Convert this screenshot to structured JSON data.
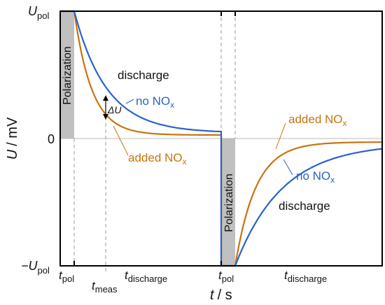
{
  "chart_data": {
    "type": "line",
    "x_axis": {
      "label_main": "t",
      "label_unit": "/ s",
      "ticks": [
        {
          "main": "t",
          "sub": "pol"
        },
        {
          "main": "t",
          "sub": "meas"
        },
        {
          "main": "t",
          "sub": "discharge"
        },
        {
          "main": "t",
          "sub": "pol"
        },
        {
          "main": "t",
          "sub": "discharge"
        }
      ]
    },
    "y_axis": {
      "label_main": "U",
      "label_unit": "/ mV",
      "ticks": [
        {
          "main": "U",
          "sub": "pol"
        },
        {
          "main": "0",
          "sub": ""
        },
        {
          "main": "−U",
          "sub": "pol"
        }
      ]
    },
    "phases": [
      {
        "label": "Polarization"
      },
      {
        "label": "discharge"
      },
      {
        "label": "Polarization"
      },
      {
        "label": "discharge"
      }
    ],
    "series": [
      {
        "name": "no NO",
        "sub": "x",
        "color": "#2a62c8"
      },
      {
        "name": "added NO",
        "sub": "x",
        "color": "#c8740f"
      }
    ],
    "delta_label": {
      "main": "ΔU"
    },
    "colors": {
      "polarization_fill": "#c0c0c0",
      "axis": "#000000",
      "dashed": "#9a9a9a"
    }
  }
}
